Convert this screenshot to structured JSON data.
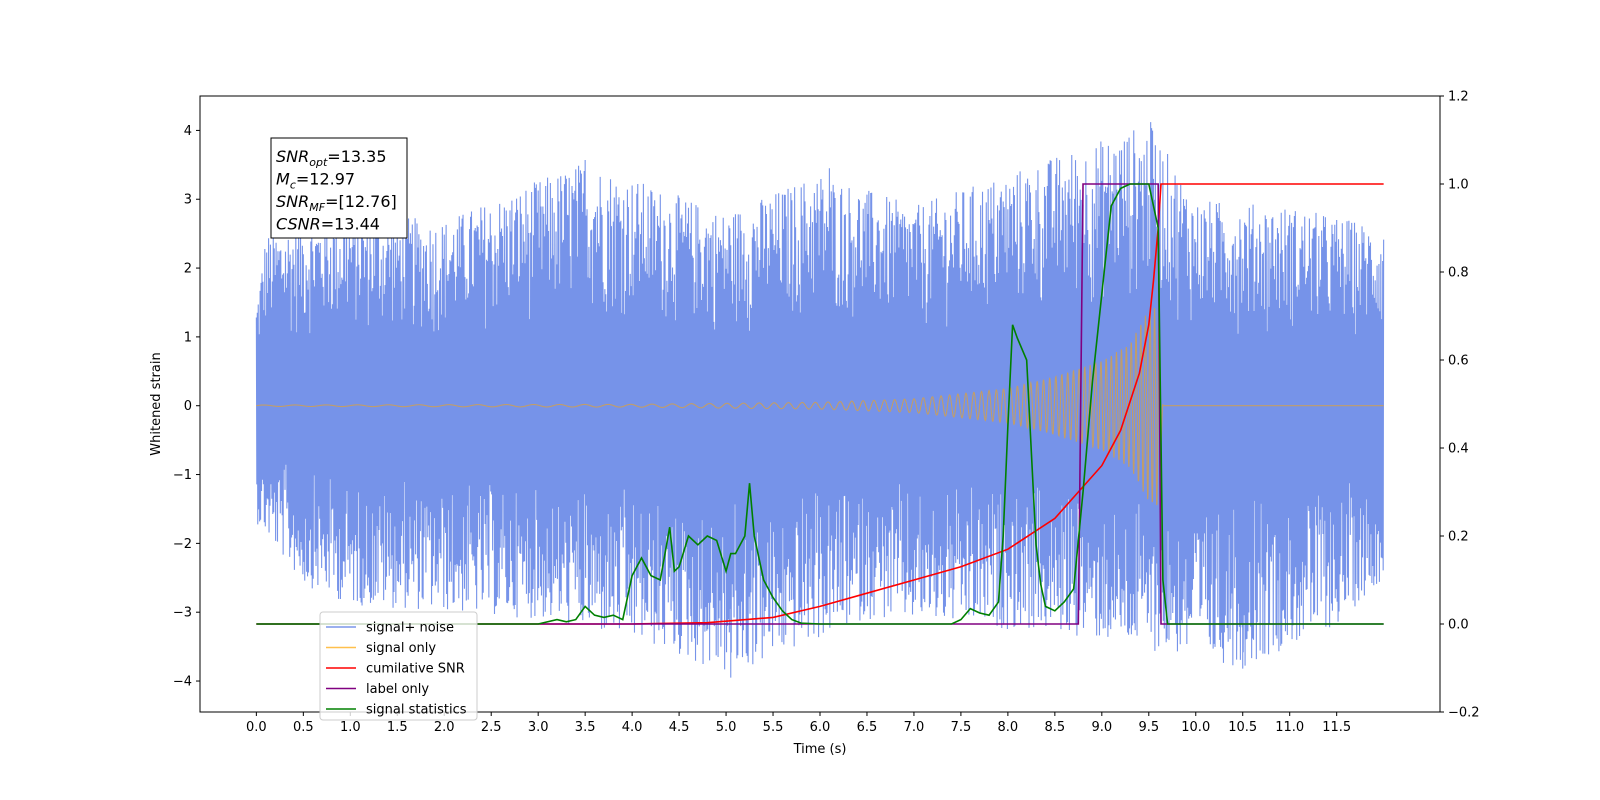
{
  "chart_data": {
    "type": "line",
    "xlabel": "Time (s)",
    "ylabel_left": "Whitened strain",
    "ylabel_right": "",
    "xlim": [
      -0.6,
      12.6
    ],
    "ylim_left": [
      -4.45,
      4.5
    ],
    "ylim_right": [
      -0.2,
      1.2
    ],
    "x_ticks": [
      0.0,
      0.5,
      1.0,
      1.5,
      2.0,
      2.5,
      3.0,
      3.5,
      4.0,
      4.5,
      5.0,
      5.5,
      6.0,
      6.5,
      7.0,
      7.5,
      8.0,
      8.5,
      9.0,
      9.5,
      10.0,
      10.5,
      11.0,
      11.5
    ],
    "x_tick_labels": [
      "0.0",
      "0.5",
      "1.0",
      "1.5",
      "2.0",
      "2.5",
      "3.0",
      "3.5",
      "4.0",
      "4.5",
      "5.0",
      "5.5",
      "6.0",
      "6.5",
      "7.0",
      "7.5",
      "8.0",
      "8.5",
      "9.0",
      "9.5",
      "10.0",
      "10.5",
      "11.0",
      "11.5"
    ],
    "y_left_ticks": [
      -4,
      -3,
      -2,
      -1,
      0,
      1,
      2,
      3,
      4
    ],
    "y_left_tick_labels": [
      "−4",
      "−3",
      "−2",
      "−1",
      "0",
      "1",
      "2",
      "3",
      "4"
    ],
    "y_right_ticks": [
      -0.2,
      0.0,
      0.2,
      0.4,
      0.6,
      0.8,
      1.0,
      1.2
    ],
    "y_right_tick_labels": [
      "−0.2",
      "0.0",
      "0.2",
      "0.4",
      "0.6",
      "0.8",
      "1.0",
      "1.2"
    ],
    "grid": false,
    "legend_location": "lower-left",
    "annotation": {
      "lines": [
        {
          "var": "SNR",
          "sub": "opt",
          "value": "=13.35"
        },
        {
          "var": "M",
          "sub": "c",
          "value": "=12.97"
        },
        {
          "var": "SNR",
          "sub": "MF",
          "value": "=[12.76]"
        },
        {
          "var": "CSNR",
          "sub": "",
          "value": "=13.44"
        }
      ]
    },
    "series": [
      {
        "name": "signal+ noise",
        "axis": "left",
        "color": "#4169e1",
        "kind": "noise_band",
        "x_range": [
          0.0,
          12.0
        ],
        "envelope_upper": [
          [
            0.0,
            1.5
          ],
          [
            0.1,
            2.5
          ],
          [
            0.5,
            2.7
          ],
          [
            1.0,
            2.8
          ],
          [
            2.0,
            2.7
          ],
          [
            3.5,
            3.57
          ],
          [
            5.0,
            2.8
          ],
          [
            6.0,
            3.4
          ],
          [
            7.0,
            2.9
          ],
          [
            9.5,
            4.12
          ],
          [
            10.0,
            3.0
          ],
          [
            11.0,
            2.9
          ],
          [
            12.0,
            2.6
          ]
        ],
        "envelope_lower": [
          [
            0.0,
            -1.7
          ],
          [
            0.5,
            -2.6
          ],
          [
            1.0,
            -2.9
          ],
          [
            2.0,
            -3.0
          ],
          [
            3.0,
            -3.1
          ],
          [
            4.2,
            -3.5
          ],
          [
            5.05,
            -3.95
          ],
          [
            6.5,
            -3.1
          ],
          [
            8.5,
            -3.3
          ],
          [
            10.5,
            -3.8
          ],
          [
            11.5,
            -3.2
          ],
          [
            12.0,
            -2.5
          ]
        ],
        "spikes": [
          [
            9.52,
            4.12
          ],
          [
            5.05,
            -3.95
          ],
          [
            10.5,
            -3.82
          ],
          [
            3.5,
            3.57
          ],
          [
            6.1,
            3.45
          ]
        ]
      },
      {
        "name": "signal only",
        "axis": "left",
        "color": "#ffa500",
        "kind": "chirp",
        "amplitude_envelope": [
          [
            0.0,
            0.01
          ],
          [
            4.0,
            0.02
          ],
          [
            6.0,
            0.05
          ],
          [
            7.0,
            0.1
          ],
          [
            8.0,
            0.25
          ],
          [
            8.5,
            0.42
          ],
          [
            9.0,
            0.65
          ],
          [
            9.3,
            0.9
          ],
          [
            9.5,
            1.4
          ],
          [
            9.6,
            1.5
          ],
          [
            9.65,
            0.0
          ],
          [
            12.0,
            0.0
          ]
        ]
      },
      {
        "name": "cumilative SNR",
        "axis": "right",
        "color": "#ff0000",
        "x": [
          0.0,
          3.0,
          4.0,
          4.8,
          5.5,
          6.0,
          6.5,
          7.0,
          7.5,
          8.0,
          8.5,
          9.0,
          9.2,
          9.4,
          9.5,
          9.55,
          9.6,
          9.63,
          9.7,
          12.0
        ],
        "y": [
          0.0,
          0.0,
          0.0,
          0.003,
          0.015,
          0.04,
          0.07,
          0.1,
          0.13,
          0.17,
          0.24,
          0.36,
          0.44,
          0.57,
          0.68,
          0.78,
          0.9,
          1.0,
          1.0,
          1.0
        ]
      },
      {
        "name": "label only",
        "axis": "right",
        "color": "#800080",
        "x": [
          0.0,
          8.75,
          8.8,
          9.6,
          9.63,
          12.0
        ],
        "y": [
          0.0,
          0.0,
          1.0,
          1.0,
          0.0,
          0.0
        ]
      },
      {
        "name": "signal statistics",
        "axis": "right",
        "color": "#008000",
        "x": [
          0.0,
          3.0,
          3.2,
          3.3,
          3.4,
          3.5,
          3.6,
          3.7,
          3.8,
          3.9,
          4.0,
          4.05,
          4.1,
          4.2,
          4.3,
          4.4,
          4.45,
          4.5,
          4.6,
          4.7,
          4.8,
          4.9,
          5.0,
          5.05,
          5.1,
          5.2,
          5.25,
          5.3,
          5.4,
          5.5,
          5.6,
          5.7,
          5.8,
          6.0,
          7.4,
          7.5,
          7.6,
          7.7,
          7.8,
          7.9,
          7.95,
          8.0,
          8.05,
          8.1,
          8.2,
          8.3,
          8.35,
          8.4,
          8.5,
          8.6,
          8.7,
          8.8,
          8.9,
          9.0,
          9.1,
          9.2,
          9.3,
          9.5,
          9.6,
          9.65,
          9.7,
          12.0
        ],
        "y": [
          0.0,
          0.0,
          0.01,
          0.005,
          0.01,
          0.04,
          0.02,
          0.015,
          0.02,
          0.01,
          0.11,
          0.13,
          0.15,
          0.11,
          0.1,
          0.22,
          0.12,
          0.13,
          0.2,
          0.18,
          0.2,
          0.19,
          0.12,
          0.16,
          0.16,
          0.2,
          0.32,
          0.2,
          0.1,
          0.06,
          0.03,
          0.01,
          0.002,
          0.0,
          0.0,
          0.01,
          0.035,
          0.025,
          0.02,
          0.05,
          0.2,
          0.45,
          0.68,
          0.65,
          0.6,
          0.18,
          0.09,
          0.04,
          0.03,
          0.05,
          0.08,
          0.3,
          0.55,
          0.75,
          0.95,
          0.99,
          1.0,
          1.0,
          0.9,
          0.1,
          0.0,
          0.0
        ]
      }
    ]
  }
}
